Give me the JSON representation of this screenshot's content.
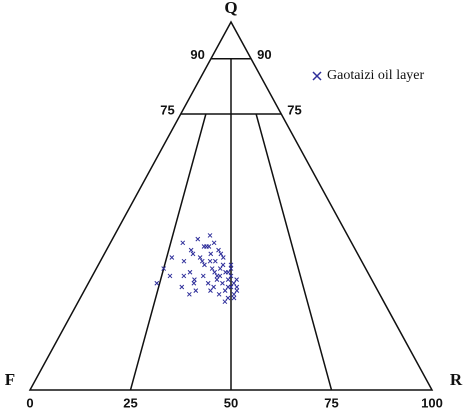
{
  "chart_data": {
    "type": "ternary",
    "vertices": [
      "Q",
      "F",
      "R"
    ],
    "qticks": [
      75,
      90
    ],
    "rticks": [
      0,
      25,
      50,
      75,
      100
    ],
    "legend": "top-right",
    "series": [
      {
        "name": "Gaotaizi oil layer",
        "color": "#2e2e9a",
        "x": [
          24,
          25,
          27,
          28,
          30,
          32,
          33,
          34,
          35,
          36,
          37,
          38,
          38,
          39,
          40,
          40,
          41,
          42,
          42,
          43,
          43,
          44,
          44,
          45,
          45,
          46,
          46,
          47,
          47,
          48,
          48,
          49,
          49,
          50,
          50,
          50,
          51,
          51,
          52,
          52,
          36,
          39,
          41,
          44,
          46,
          48,
          50,
          33,
          37,
          42,
          45,
          47,
          49,
          51,
          35,
          40,
          43,
          46,
          49,
          52
        ],
        "values": [
          29,
          33,
          36,
          31,
          40,
          35,
          28,
          38,
          32,
          41,
          30,
          36,
          27,
          39,
          34,
          31,
          42,
          29,
          37,
          33,
          40,
          28,
          35,
          31,
          38,
          26,
          33,
          29,
          36,
          27,
          32,
          30,
          25,
          34,
          28,
          31,
          26,
          29,
          27,
          30,
          26,
          35,
          39,
          32,
          37,
          24,
          33,
          31,
          29,
          35,
          30,
          34,
          28,
          25,
          37,
          39,
          27,
          31,
          32,
          28
        ]
      }
    ]
  }
}
